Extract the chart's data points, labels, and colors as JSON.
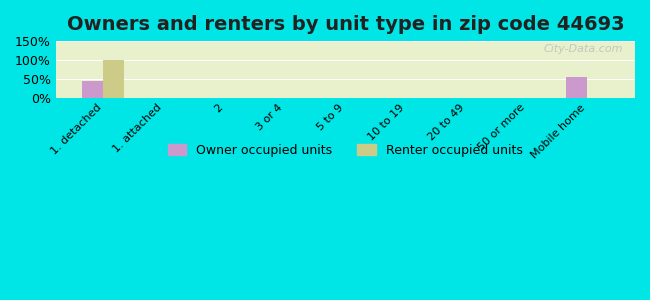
{
  "title": "Owners and renters by unit type in zip code 44693",
  "categories": [
    "1. detached",
    "1. attached",
    "2",
    "3 or 4",
    "5 to 9",
    "10 to 19",
    "20 to 49",
    "50 or more",
    "Mobile home"
  ],
  "owner_values": [
    44,
    0,
    0,
    0,
    0,
    0,
    0,
    0,
    55
  ],
  "renter_values": [
    100,
    0,
    0,
    0,
    0,
    0,
    0,
    0,
    0
  ],
  "owner_color": "#cc99cc",
  "renter_color": "#cccc88",
  "ylim": [
    0,
    150
  ],
  "yticks": [
    0,
    50,
    100,
    150
  ],
  "ytick_labels": [
    "0%",
    "50%",
    "100%",
    "150%"
  ],
  "background_outer": "#00e5e5",
  "background_inner": "#eef5e0",
  "bar_width": 0.35,
  "legend_owner": "Owner occupied units",
  "legend_renter": "Renter occupied units",
  "title_fontsize": 14,
  "watermark": "City-Data.com"
}
